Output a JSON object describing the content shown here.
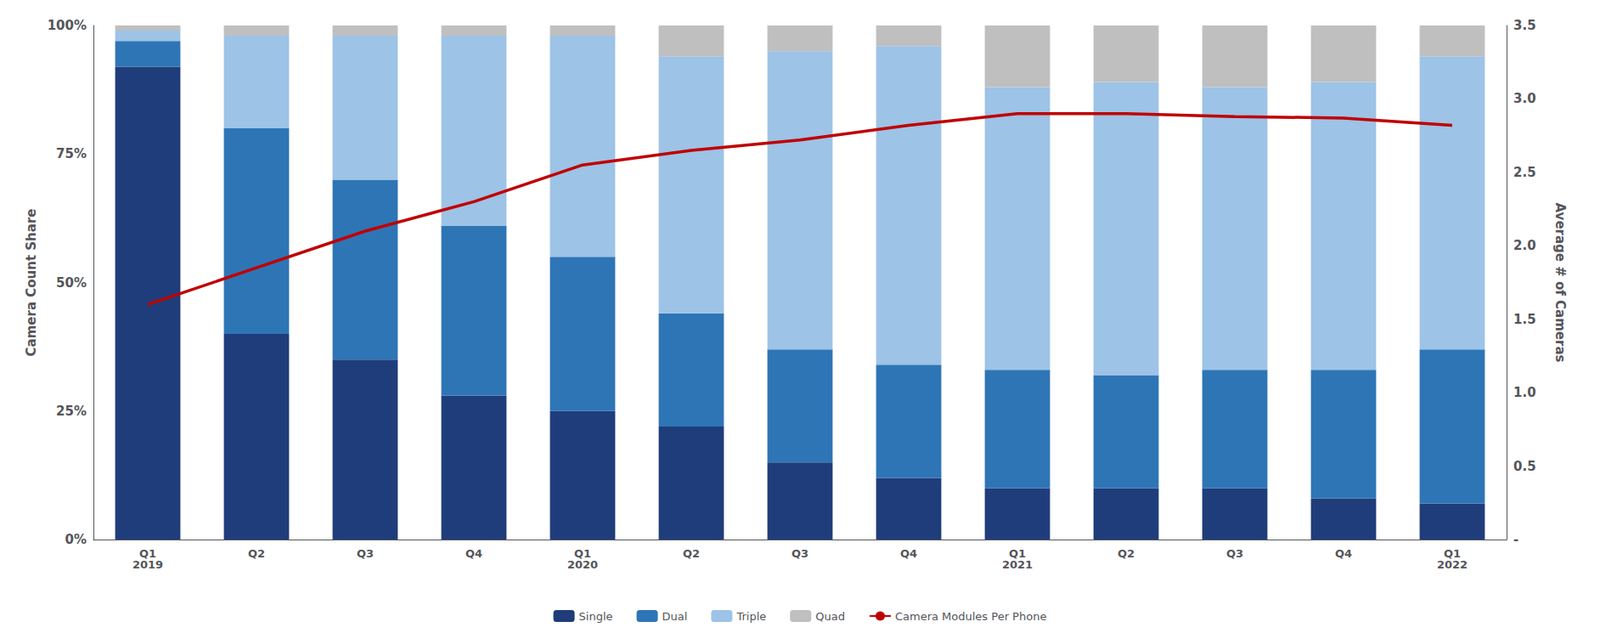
{
  "chart_data": {
    "type": "bar",
    "stacked": true,
    "categories": [
      "Q1\n2019",
      "Q2",
      "Q3",
      "Q4",
      "Q1\n2020",
      "Q2",
      "Q3",
      "Q4",
      "Q1\n2021",
      "Q2",
      "Q3",
      "Q4",
      "Q1\n2022"
    ],
    "series": [
      {
        "name": "Single",
        "color": "#1f3d7a",
        "values": [
          92,
          40,
          35,
          28,
          25,
          22,
          15,
          12,
          10,
          10,
          10,
          8,
          7
        ]
      },
      {
        "name": "Dual",
        "color": "#2e75b6",
        "values": [
          5,
          40,
          35,
          33,
          30,
          22,
          22,
          22,
          23,
          22,
          23,
          25,
          30
        ]
      },
      {
        "name": "Triple",
        "color": "#9dc3e6",
        "values": [
          2,
          18,
          28,
          37,
          43,
          50,
          58,
          62,
          55,
          57,
          55,
          56,
          57
        ]
      },
      {
        "name": "Quad",
        "color": "#bfbfbf",
        "values": [
          1,
          2,
          2,
          2,
          2,
          6,
          5,
          4,
          12,
          11,
          12,
          11,
          6
        ]
      },
      {
        "name": "Camera Modules Per Phone",
        "type": "line",
        "axis": "y2",
        "color": "#c00000",
        "values": [
          1.6,
          1.85,
          2.1,
          2.3,
          2.55,
          2.65,
          2.72,
          2.82,
          2.9,
          2.9,
          2.88,
          2.87,
          2.82
        ]
      }
    ],
    "ylabel": "Camera Count Share",
    "y2label": "Average # of Cameras",
    "ylim": [
      0,
      100
    ],
    "yticks": [
      {
        "value": 0,
        "label": "0%"
      },
      {
        "value": 25,
        "label": "25%"
      },
      {
        "value": 50,
        "label": "50%"
      },
      {
        "value": 75,
        "label": "75%"
      },
      {
        "value": 100,
        "label": "100%"
      }
    ],
    "y2lim": [
      0,
      3.5
    ],
    "y2ticks": [
      {
        "value": 0,
        "label": "-"
      },
      0.5,
      {
        "value": 1,
        "label": "1.0"
      },
      1.5,
      {
        "value": 2,
        "label": "2.0"
      },
      2.5,
      {
        "value": 3,
        "label": "3.0"
      },
      3.5
    ],
    "grid": false,
    "legend": "bottom"
  }
}
